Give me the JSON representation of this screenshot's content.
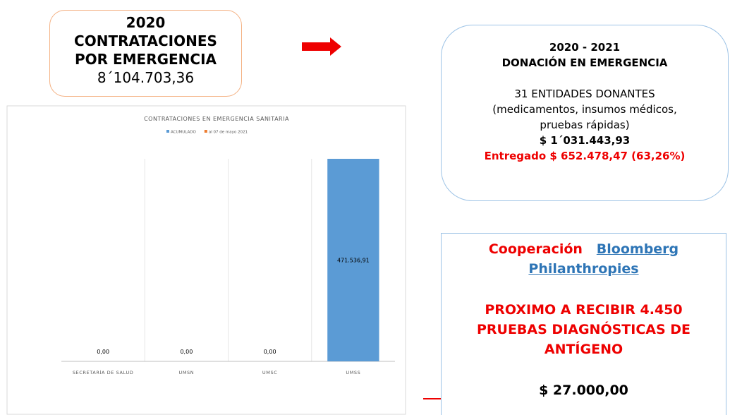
{
  "box_left": {
    "year": "2020",
    "line1": "CONTRATACIONES",
    "line2": "POR EMERGENCIA",
    "amount": "8´104.703,36"
  },
  "box_right": {
    "title": "2020 - 2021",
    "subtitle": "DONACIÓN EN EMERGENCIA",
    "line1": "31 ENTIDADES DONANTES",
    "line2": "(medicamentos, insumos médicos,",
    "line3": "pruebas rápidas)",
    "amount": "$  1´031.443,93",
    "delivered": "Entregado $  652.478,47 (63,26%)"
  },
  "box_bottom": {
    "coop": "Cooperación",
    "link1": "Bloomberg",
    "link2": "Philanthropies",
    "text1": "PROXIMO A RECIBIR 4.450",
    "text2": "PRUEBAS DIAGNÓSTICAS DE",
    "text3": "ANTÍGENO",
    "amount": "$ 27.000,00"
  },
  "chart_data": {
    "type": "bar",
    "title": "CONTRATACIONES EN EMERGENCIA SANITARIA",
    "categories": [
      "SECRETARÍA DE SALUD",
      "UMSN",
      "UMSC",
      "UMSS"
    ],
    "series": [
      {
        "name": "ACUMULADO",
        "color": "#5b9bd5",
        "values": [
          0,
          0,
          0,
          471536.91
        ],
        "value_labels": [
          "0,00",
          "0,00",
          "0,00",
          "471.536,91"
        ]
      },
      {
        "name": "al 07 de mayo 2021",
        "color": "#ed7d31",
        "values": [
          null,
          null,
          null,
          null
        ]
      }
    ],
    "ylim": [
      0,
      471536.91
    ]
  }
}
